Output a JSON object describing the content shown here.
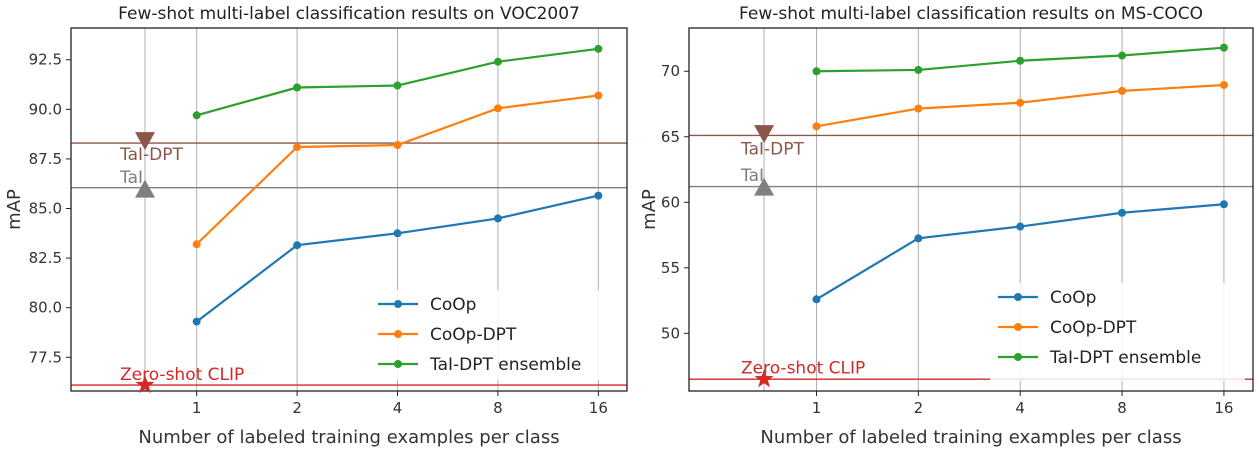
{
  "chart_data": [
    {
      "type": "line",
      "title": "Few-shot multi-label classification results on VOC2007",
      "xlabel": "Number of labeled training examples per class",
      "ylabel": "mAP",
      "xscale": "log2",
      "xlim": [
        0.42,
        19.5
      ],
      "ylim": [
        75.8,
        94.1
      ],
      "xticks": [
        1,
        2,
        4,
        8,
        16
      ],
      "xtick_labels": [
        "1",
        "2",
        "4",
        "8",
        "16"
      ],
      "yticks": [
        77.5,
        80.0,
        82.5,
        85.0,
        87.5,
        90.0,
        92.5
      ],
      "ytick_labels": [
        "77.5",
        "80.0",
        "82.5",
        "85.0",
        "87.5",
        "90.0",
        "92.5"
      ],
      "vgrid_x": [
        0.7,
        1,
        2,
        4,
        8,
        16
      ],
      "x": [
        1,
        2,
        4,
        8,
        16
      ],
      "series": [
        {
          "name": "CoOp",
          "color": "#1f77b4",
          "values": [
            79.3,
            83.15,
            83.75,
            84.5,
            85.65
          ]
        },
        {
          "name": "CoOp-DPT",
          "color": "#ff7f0e",
          "values": [
            83.2,
            88.1,
            88.2,
            90.05,
            90.7
          ]
        },
        {
          "name": "TaI-DPT ensemble",
          "color": "#2ca02c",
          "values": [
            89.7,
            91.1,
            91.2,
            92.4,
            93.05
          ]
        }
      ],
      "reference_lines": [
        {
          "name": "TaI-DPT",
          "value": 88.3,
          "marker_value": 88.4,
          "color": "#8c564b",
          "marker": "triangle-down",
          "label_offset": -0.55
        },
        {
          "name": "TaI",
          "value": 86.05,
          "marker_value": 86.0,
          "color": "#7f7f7f",
          "marker": "triangle-up",
          "label_offset": 0.55
        },
        {
          "name": "Zero-shot CLIP",
          "value": 76.1,
          "marker_value": 76.1,
          "color": "#d62728",
          "marker": "star",
          "label_offset": 0.55
        }
      ],
      "legend_position": "lower-right"
    },
    {
      "type": "line",
      "title": "Few-shot multi-label classification results on MS-COCO",
      "xlabel": "Number of labeled training examples per class",
      "ylabel": "mAP",
      "xscale": "log2",
      "xlim": [
        0.42,
        19.5
      ],
      "ylim": [
        45.6,
        73.3
      ],
      "xticks": [
        1,
        2,
        4,
        8,
        16
      ],
      "xtick_labels": [
        "1",
        "2",
        "4",
        "8",
        "16"
      ],
      "yticks": [
        50,
        55,
        60,
        65,
        70
      ],
      "ytick_labels": [
        "50",
        "55",
        "60",
        "65",
        "70"
      ],
      "vgrid_x": [
        0.7,
        1,
        2,
        4,
        8,
        16
      ],
      "x": [
        1,
        2,
        4,
        8,
        16
      ],
      "series": [
        {
          "name": "CoOp",
          "color": "#1f77b4",
          "values": [
            52.6,
            57.25,
            58.15,
            59.2,
            59.85
          ]
        },
        {
          "name": "CoOp-DPT",
          "color": "#ff7f0e",
          "values": [
            65.8,
            67.15,
            67.6,
            68.5,
            68.95
          ]
        },
        {
          "name": "TaI-DPT ensemble",
          "color": "#2ca02c",
          "values": [
            70.0,
            70.1,
            70.8,
            71.2,
            71.8
          ]
        }
      ],
      "reference_lines": [
        {
          "name": "TaI-DPT",
          "value": 65.1,
          "marker_value": 65.2,
          "color": "#8c564b",
          "marker": "triangle-down",
          "label_offset": -1.0
        },
        {
          "name": "TaI",
          "value": 61.2,
          "marker_value": 61.2,
          "color": "#7f7f7f",
          "marker": "triangle-up",
          "label_offset": 0.9
        },
        {
          "name": "Zero-shot CLIP",
          "value": 46.5,
          "marker_value": 46.5,
          "color": "#d62728",
          "marker": "star",
          "label_offset": 0.9
        }
      ],
      "legend_position": "lower-right"
    }
  ]
}
